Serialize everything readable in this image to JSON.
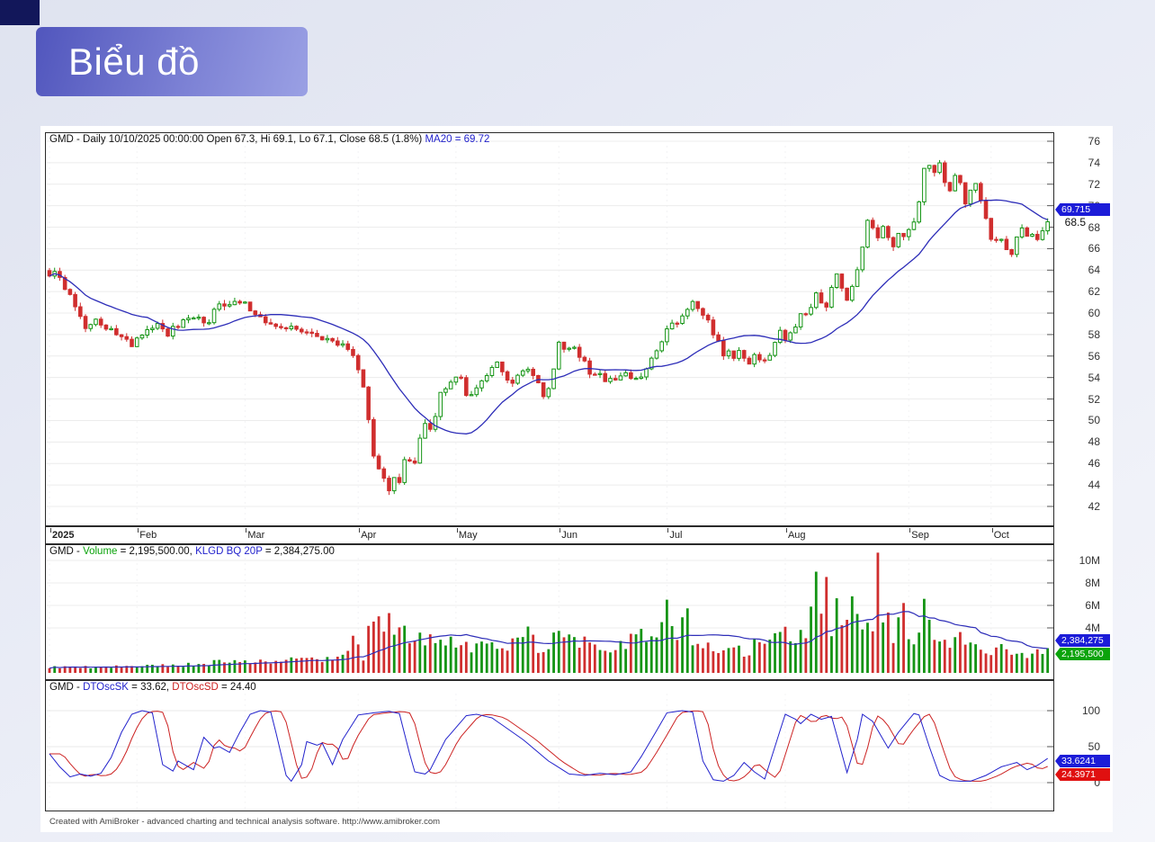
{
  "header": {
    "title": "Biểu đồ"
  },
  "footer": {
    "credit": "Created with AmiBroker - advanced charting and technical analysis software. http://www.amibroker.com"
  },
  "colors": {
    "up": "#149414",
    "down": "#d02e2e",
    "ma": "#2d2db8",
    "osc_blue": "#2222cc",
    "osc_red": "#cc2222",
    "badge_blue": "#1c1cd8",
    "badge_green": "#0ba30b",
    "badge_red": "#e01010",
    "header_accent": "#5156bd"
  },
  "panels": {
    "price": {
      "t_black": "GMD - Daily 10/10/2025 00:00:00 Open 67.3, Hi 69.1, Lo 67.1, Close 68.5 (1.8%) ",
      "t_blue": "MA20 = 69.72"
    },
    "volume": {
      "t1": "GMD - ",
      "t2": "Volume",
      "t3": " = 2,195,500.00, ",
      "t4": "KLGD BQ 20P",
      "t5": " = 2,384,275.00"
    },
    "osc": {
      "t1": "GMD - ",
      "t2": "DTOscSK",
      "t3": " = 33.62, ",
      "t4": "DTOscSD",
      "t5": " = 24.40"
    }
  },
  "badges": {
    "ma": "69.715",
    "last_price": "68.5",
    "vol_ma": "2,384,275",
    "vol": "2,195,500",
    "sk": "33.6241",
    "sd": "24.3971"
  },
  "chart_data": [
    {
      "type": "candlestick",
      "title": "GMD - Daily 10/10/2025 00:00:00 Open 67.3, Hi 69.1, Lo 67.1, Close 68.5 (1.8%) MA20 = 69.72",
      "symbol": "GMD",
      "timeframe": "Daily",
      "last": {
        "date": "10/10/2025 00:00:00",
        "open": 67.3,
        "high": 69.1,
        "low": 67.1,
        "close": 68.5,
        "change": "1.8%"
      },
      "ma": {
        "name": "MA20",
        "period": 20,
        "value": 69.72,
        "axis_tag": "69.715"
      },
      "ylim": [
        41.5,
        77
      ],
      "y_ticks": [
        76,
        74,
        72,
        70,
        68,
        66,
        64,
        62,
        60,
        58,
        56,
        54,
        52,
        50,
        48,
        46,
        44,
        42
      ],
      "x_ticks": [
        [
          0,
          "2025"
        ],
        [
          17,
          "Feb"
        ],
        [
          38,
          "Mar"
        ],
        [
          60,
          "Apr"
        ],
        [
          79,
          "May"
        ],
        [
          99,
          "Jun"
        ],
        [
          120,
          "Jul"
        ],
        [
          143,
          "Aug"
        ],
        [
          167,
          "Sep"
        ],
        [
          183,
          "Oct"
        ]
      ],
      "days": 195,
      "close_waypoints": [
        [
          0,
          63.3
        ],
        [
          1,
          64.2
        ],
        [
          3,
          62.5
        ],
        [
          5,
          60.6
        ],
        [
          7,
          58.8
        ],
        [
          9,
          59.4
        ],
        [
          11,
          58.8
        ],
        [
          14,
          57.6
        ],
        [
          16,
          57.0
        ],
        [
          18,
          58.1
        ],
        [
          21,
          58.8
        ],
        [
          23,
          58.2
        ],
        [
          25,
          58.8
        ],
        [
          28,
          59.6
        ],
        [
          31,
          59.2
        ],
        [
          33,
          61.2
        ],
        [
          35,
          60.8
        ],
        [
          38,
          60.9
        ],
        [
          39,
          60.0
        ],
        [
          42,
          59.4
        ],
        [
          45,
          58.4
        ],
        [
          47,
          58.8
        ],
        [
          49,
          58.2
        ],
        [
          52,
          57.7
        ],
        [
          54,
          57.5
        ],
        [
          57,
          56.8
        ],
        [
          59,
          55.9
        ],
        [
          60,
          54.6
        ],
        [
          61,
          52.8
        ],
        [
          63,
          47.0
        ],
        [
          65,
          44.6
        ],
        [
          66,
          43.2
        ],
        [
          67,
          44.8
        ],
        [
          68,
          44.2
        ],
        [
          69,
          46.5
        ],
        [
          71,
          46.0
        ],
        [
          72,
          48.3
        ],
        [
          73,
          49.8
        ],
        [
          74,
          49.0
        ],
        [
          75,
          50.6
        ],
        [
          76,
          52.3
        ],
        [
          78,
          53.4
        ],
        [
          80,
          54.3
        ],
        [
          81,
          52.4
        ],
        [
          83,
          52.9
        ],
        [
          85,
          54.1
        ],
        [
          87,
          55.1
        ],
        [
          88,
          54.2
        ],
        [
          90,
          53.2
        ],
        [
          91,
          53.9
        ],
        [
          93,
          54.9
        ],
        [
          94,
          54.1
        ],
        [
          95,
          53.2
        ],
        [
          96,
          52.3
        ],
        [
          97,
          52.9
        ],
        [
          99,
          57.2
        ],
        [
          100,
          56.6
        ],
        [
          101,
          56.9
        ],
        [
          103,
          56.2
        ],
        [
          104,
          55.3
        ],
        [
          105,
          54.6
        ],
        [
          107,
          54.1
        ],
        [
          109,
          53.8
        ],
        [
          111,
          54.3
        ],
        [
          113,
          53.9
        ],
        [
          115,
          54.4
        ],
        [
          117,
          55.7
        ],
        [
          119,
          57.1
        ],
        [
          120,
          58.4
        ],
        [
          122,
          59.3
        ],
        [
          124,
          60.6
        ],
        [
          125,
          61.0
        ],
        [
          126,
          60.3
        ],
        [
          128,
          59.2
        ],
        [
          129,
          58.1
        ],
        [
          130,
          57.1
        ],
        [
          131,
          56.3
        ],
        [
          133,
          56.0
        ],
        [
          134,
          56.6
        ],
        [
          135,
          55.8
        ],
        [
          136,
          55.3
        ],
        [
          137,
          56.1
        ],
        [
          139,
          55.5
        ],
        [
          141,
          57.3
        ],
        [
          142,
          58.2
        ],
        [
          143,
          57.6
        ],
        [
          145,
          58.8
        ],
        [
          146,
          59.6
        ],
        [
          148,
          60.8
        ],
        [
          149,
          62.1
        ],
        [
          150,
          61.2
        ],
        [
          151,
          60.3
        ],
        [
          152,
          62.2
        ],
        [
          153,
          63.4
        ],
        [
          154,
          62.4
        ],
        [
          155,
          61.5
        ],
        [
          156,
          62.6
        ],
        [
          157,
          64.2
        ],
        [
          158,
          66.4
        ],
        [
          159,
          68.9
        ],
        [
          160,
          68.0
        ],
        [
          161,
          67.2
        ],
        [
          162,
          68.4
        ],
        [
          163,
          67.0
        ],
        [
          164,
          66.2
        ],
        [
          165,
          67.5
        ],
        [
          166,
          66.8
        ],
        [
          168,
          68.2
        ],
        [
          169,
          70.5
        ],
        [
          170,
          73.6
        ],
        [
          171,
          73.9
        ],
        [
          172,
          73.3
        ],
        [
          173,
          73.8
        ],
        [
          174,
          72.5
        ],
        [
          175,
          71.6
        ],
        [
          176,
          72.9
        ],
        [
          177,
          71.8
        ],
        [
          178,
          70.3
        ],
        [
          179,
          71.4
        ],
        [
          180,
          72.3
        ],
        [
          181,
          70.4
        ],
        [
          182,
          68.6
        ],
        [
          183,
          67.2
        ],
        [
          184,
          66.5
        ],
        [
          185,
          67.0
        ],
        [
          186,
          66.2
        ],
        [
          187,
          65.8
        ],
        [
          188,
          67.1
        ],
        [
          189,
          67.8
        ],
        [
          190,
          66.9
        ],
        [
          191,
          67.3
        ],
        [
          192,
          66.8
        ],
        [
          193,
          67.4
        ],
        [
          194,
          68.5
        ]
      ],
      "noise": 0.35,
      "wick": 0.4,
      "seed": 3
    },
    {
      "type": "bar",
      "title": "GMD - Volume = 2,195,500.00, KLGD BQ 20P = 2,384,275.00",
      "series": [
        {
          "name": "Volume",
          "last": 2195500
        },
        {
          "name": "KLGD BQ 20P",
          "period": 20,
          "last": 2384275
        }
      ],
      "y_ticks": [
        [
          10,
          "10M"
        ],
        [
          8,
          "8M"
        ],
        [
          6,
          "6M"
        ],
        [
          4,
          "4M"
        ]
      ],
      "volume_waypoints_m": [
        [
          0,
          0.5
        ],
        [
          10,
          0.5
        ],
        [
          20,
          0.6
        ],
        [
          30,
          0.8
        ],
        [
          35,
          1.2
        ],
        [
          40,
          0.9
        ],
        [
          45,
          1.1
        ],
        [
          50,
          1.3
        ],
        [
          55,
          1.1
        ],
        [
          58,
          1.8
        ],
        [
          59,
          2.6
        ],
        [
          61,
          1.5
        ],
        [
          63,
          5.9
        ],
        [
          64,
          4.6
        ],
        [
          65,
          3.4
        ],
        [
          66,
          4.2
        ],
        [
          67,
          3.0
        ],
        [
          69,
          3.6
        ],
        [
          71,
          2.6
        ],
        [
          73,
          3.1
        ],
        [
          75,
          2.4
        ],
        [
          78,
          2.8
        ],
        [
          80,
          2.2
        ],
        [
          83,
          2.5
        ],
        [
          85,
          2.9
        ],
        [
          88,
          2.2
        ],
        [
          90,
          2.6
        ],
        [
          93,
          3.3
        ],
        [
          95,
          2.4
        ],
        [
          97,
          2.0
        ],
        [
          99,
          4.5
        ],
        [
          101,
          2.8
        ],
        [
          103,
          3.1
        ],
        [
          105,
          3.5
        ],
        [
          107,
          2.6
        ],
        [
          109,
          2.2
        ],
        [
          111,
          2.4
        ],
        [
          113,
          2.9
        ],
        [
          115,
          3.3
        ],
        [
          117,
          2.6
        ],
        [
          119,
          3.6
        ],
        [
          120,
          5.5
        ],
        [
          121,
          4.2
        ],
        [
          122,
          3.4
        ],
        [
          124,
          4.6
        ],
        [
          125,
          3.2
        ],
        [
          127,
          2.4
        ],
        [
          129,
          2.0
        ],
        [
          131,
          1.7
        ],
        [
          133,
          2.2
        ],
        [
          135,
          1.9
        ],
        [
          137,
          2.4
        ],
        [
          139,
          2.1
        ],
        [
          141,
          2.9
        ],
        [
          143,
          3.4
        ],
        [
          145,
          2.7
        ],
        [
          147,
          3.8
        ],
        [
          149,
          8.7
        ],
        [
          150,
          5.2
        ],
        [
          151,
          7.0
        ],
        [
          152,
          4.4
        ],
        [
          153,
          6.6
        ],
        [
          155,
          4.2
        ],
        [
          156,
          7.2
        ],
        [
          157,
          4.8
        ],
        [
          158,
          3.6
        ],
        [
          159,
          5.4
        ],
        [
          160,
          4.2
        ],
        [
          161,
          9.8
        ],
        [
          162,
          5.0
        ],
        [
          163,
          4.4
        ],
        [
          164,
          3.4
        ],
        [
          165,
          4.8
        ],
        [
          166,
          5.6
        ],
        [
          167,
          4.1
        ],
        [
          168,
          3.2
        ],
        [
          169,
          4.4
        ],
        [
          170,
          6.5
        ],
        [
          171,
          3.8
        ],
        [
          172,
          3.0
        ],
        [
          173,
          3.4
        ],
        [
          175,
          2.6
        ],
        [
          177,
          2.9
        ],
        [
          179,
          2.2
        ],
        [
          181,
          2.6
        ],
        [
          183,
          1.9
        ],
        [
          185,
          2.3
        ],
        [
          187,
          1.7
        ],
        [
          189,
          1.5
        ],
        [
          191,
          1.9
        ],
        [
          193,
          1.4
        ],
        [
          194,
          2.2
        ]
      ],
      "seed": 9
    },
    {
      "type": "line",
      "title": "GMD - DTOscSK = 33.62, DTOscSD = 24.40",
      "series": [
        {
          "name": "DTOscSK",
          "last": 33.62,
          "badge": "33.6241"
        },
        {
          "name": "DTOscSD",
          "last": 24.4,
          "badge": "24.3971"
        }
      ],
      "y_ticks": [
        [
          100,
          "100"
        ],
        [
          50,
          "50"
        ],
        [
          0,
          "0"
        ]
      ],
      "ylim": [
        0,
        100
      ],
      "sk_waypoints": [
        [
          0,
          40
        ],
        [
          2,
          22
        ],
        [
          4,
          8
        ],
        [
          6,
          12
        ],
        [
          8,
          9
        ],
        [
          10,
          13
        ],
        [
          12,
          35
        ],
        [
          14,
          70
        ],
        [
          16,
          95
        ],
        [
          18,
          100
        ],
        [
          20,
          97
        ],
        [
          22,
          25
        ],
        [
          24,
          16
        ],
        [
          25,
          30
        ],
        [
          27,
          22
        ],
        [
          28,
          18
        ],
        [
          30,
          63
        ],
        [
          32,
          48
        ],
        [
          33,
          50
        ],
        [
          35,
          42
        ],
        [
          37,
          70
        ],
        [
          39,
          95
        ],
        [
          41,
          100
        ],
        [
          43,
          98
        ],
        [
          44,
          70
        ],
        [
          46,
          10
        ],
        [
          47,
          2
        ],
        [
          49,
          25
        ],
        [
          50,
          57
        ],
        [
          52,
          52
        ],
        [
          53,
          55
        ],
        [
          55,
          25
        ],
        [
          57,
          60
        ],
        [
          60,
          94
        ],
        [
          63,
          97
        ],
        [
          66,
          99
        ],
        [
          68,
          96
        ],
        [
          70,
          40
        ],
        [
          71,
          15
        ],
        [
          73,
          12
        ],
        [
          74,
          18
        ],
        [
          77,
          60
        ],
        [
          81,
          93
        ],
        [
          83,
          95
        ],
        [
          86,
          90
        ],
        [
          88,
          80
        ],
        [
          92,
          60
        ],
        [
          97,
          30
        ],
        [
          101,
          12
        ],
        [
          104,
          10
        ],
        [
          107,
          13
        ],
        [
          110,
          11
        ],
        [
          113,
          15
        ],
        [
          115,
          36
        ],
        [
          117,
          60
        ],
        [
          120,
          97
        ],
        [
          123,
          100
        ],
        [
          125,
          98
        ],
        [
          127,
          30
        ],
        [
          129,
          4
        ],
        [
          131,
          2
        ],
        [
          133,
          10
        ],
        [
          135,
          28
        ],
        [
          137,
          15
        ],
        [
          139,
          5
        ],
        [
          141,
          50
        ],
        [
          143,
          95
        ],
        [
          145,
          88
        ],
        [
          146,
          82
        ],
        [
          148,
          95
        ],
        [
          150,
          88
        ],
        [
          152,
          92
        ],
        [
          155,
          14
        ],
        [
          157,
          60
        ],
        [
          158,
          95
        ],
        [
          160,
          85
        ],
        [
          163,
          48
        ],
        [
          165,
          70
        ],
        [
          168,
          96
        ],
        [
          169,
          94
        ],
        [
          171,
          50
        ],
        [
          173,
          10
        ],
        [
          175,
          3
        ],
        [
          177,
          2
        ],
        [
          179,
          2
        ],
        [
          182,
          10
        ],
        [
          185,
          22
        ],
        [
          188,
          28
        ],
        [
          190,
          18
        ],
        [
          192,
          24
        ],
        [
          194,
          33.62
        ]
      ],
      "sd_lag": 2.5
    }
  ]
}
